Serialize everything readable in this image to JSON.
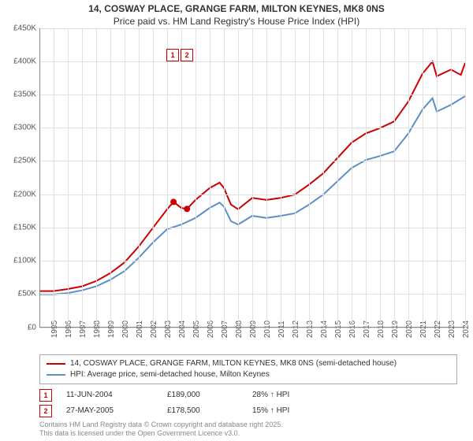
{
  "title_line1": "14, COSWAY PLACE, GRANGE FARM, MILTON KEYNES, MK8 0NS",
  "title_line2": "Price paid vs. HM Land Registry's House Price Index (HPI)",
  "chart": {
    "type": "line",
    "background_color": "#ffffff",
    "grid_color": "#e0e0e0",
    "axis_color": "#888888",
    "ylim": [
      0,
      450000
    ],
    "ytick_step": 50000,
    "ytick_labels": [
      "£0",
      "£50K",
      "£100K",
      "£150K",
      "£200K",
      "£250K",
      "£300K",
      "£350K",
      "£400K",
      "£450K"
    ],
    "xlim": [
      1995,
      2025
    ],
    "xtick_step": 1,
    "xtick_labels": [
      "1995",
      "1996",
      "1997",
      "1998",
      "1999",
      "2000",
      "2001",
      "2002",
      "2003",
      "2004",
      "2005",
      "2006",
      "2007",
      "2008",
      "2009",
      "2010",
      "2011",
      "2012",
      "2013",
      "2014",
      "2015",
      "2016",
      "2017",
      "2018",
      "2019",
      "2020",
      "2021",
      "2022",
      "2023",
      "2024",
      "2025"
    ],
    "series": [
      {
        "name": "14, COSWAY PLACE, GRANGE FARM, MILTON KEYNES, MK8 0NS (semi-detached house)",
        "color": "#cc0000",
        "line_width": 2,
        "data": [
          [
            1995,
            55000
          ],
          [
            1996,
            55000
          ],
          [
            1997,
            58000
          ],
          [
            1998,
            62000
          ],
          [
            1999,
            70000
          ],
          [
            2000,
            82000
          ],
          [
            2001,
            98000
          ],
          [
            2002,
            122000
          ],
          [
            2003,
            150000
          ],
          [
            2004,
            178000
          ],
          [
            2004.45,
            189000
          ],
          [
            2005,
            180000
          ],
          [
            2005.4,
            178500
          ],
          [
            2006,
            192000
          ],
          [
            2007,
            210000
          ],
          [
            2007.7,
            218000
          ],
          [
            2008,
            210000
          ],
          [
            2008.5,
            185000
          ],
          [
            2009,
            178000
          ],
          [
            2010,
            195000
          ],
          [
            2011,
            192000
          ],
          [
            2012,
            195000
          ],
          [
            2013,
            200000
          ],
          [
            2014,
            215000
          ],
          [
            2015,
            232000
          ],
          [
            2016,
            255000
          ],
          [
            2017,
            278000
          ],
          [
            2018,
            292000
          ],
          [
            2019,
            300000
          ],
          [
            2020,
            310000
          ],
          [
            2021,
            340000
          ],
          [
            2022,
            382000
          ],
          [
            2022.7,
            400000
          ],
          [
            2023,
            378000
          ],
          [
            2024,
            388000
          ],
          [
            2024.7,
            380000
          ],
          [
            2025,
            398000
          ]
        ]
      },
      {
        "name": "HPI: Average price, semi-detached house, Milton Keynes",
        "color": "#5b8fc7",
        "line_width": 2,
        "data": [
          [
            1995,
            50000
          ],
          [
            1996,
            50000
          ],
          [
            1997,
            52000
          ],
          [
            1998,
            56000
          ],
          [
            1999,
            62000
          ],
          [
            2000,
            72000
          ],
          [
            2001,
            85000
          ],
          [
            2002,
            105000
          ],
          [
            2003,
            128000
          ],
          [
            2004,
            148000
          ],
          [
            2005,
            155000
          ],
          [
            2006,
            165000
          ],
          [
            2007,
            180000
          ],
          [
            2007.7,
            188000
          ],
          [
            2008,
            182000
          ],
          [
            2008.5,
            160000
          ],
          [
            2009,
            155000
          ],
          [
            2010,
            168000
          ],
          [
            2011,
            165000
          ],
          [
            2012,
            168000
          ],
          [
            2013,
            172000
          ],
          [
            2014,
            185000
          ],
          [
            2015,
            200000
          ],
          [
            2016,
            220000
          ],
          [
            2017,
            240000
          ],
          [
            2018,
            252000
          ],
          [
            2019,
            258000
          ],
          [
            2020,
            265000
          ],
          [
            2021,
            292000
          ],
          [
            2022,
            328000
          ],
          [
            2022.7,
            345000
          ],
          [
            2023,
            325000
          ],
          [
            2024,
            335000
          ],
          [
            2025,
            348000
          ]
        ]
      }
    ],
    "sale_markers": [
      {
        "n": "1",
        "x": 2004.45,
        "y": 189000,
        "color": "#cc0000"
      },
      {
        "n": "2",
        "x": 2005.4,
        "y": 178500,
        "color": "#cc0000"
      }
    ],
    "label_fontsize": 10
  },
  "legend": {
    "items": [
      {
        "color": "#cc0000",
        "label": "14, COSWAY PLACE, GRANGE FARM, MILTON KEYNES, MK8 0NS (semi-detached house)"
      },
      {
        "color": "#5b8fc7",
        "label": "HPI: Average price, semi-detached house, Milton Keynes"
      }
    ]
  },
  "sales": [
    {
      "n": "1",
      "date": "11-JUN-2004",
      "price": "£189,000",
      "hpi": "28% ↑ HPI",
      "color": "#cc0000"
    },
    {
      "n": "2",
      "date": "27-MAY-2005",
      "price": "£178,500",
      "hpi": "15% ↑ HPI",
      "color": "#cc0000"
    }
  ],
  "footnote1": "Contains HM Land Registry data © Crown copyright and database right 2025.",
  "footnote2": "This data is licensed under the Open Government Licence v3.0."
}
